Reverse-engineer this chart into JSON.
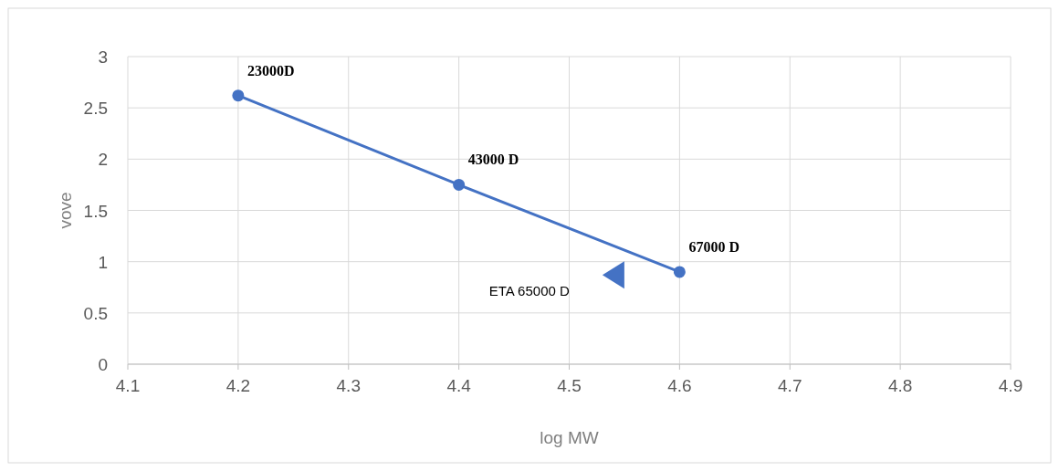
{
  "chart_data": {
    "type": "line",
    "xlabel": "log MW",
    "ylabel": "vove",
    "xlim": [
      4.1,
      4.9
    ],
    "xticks": [
      4.1,
      4.2,
      4.3,
      4.4,
      4.5,
      4.6,
      4.7,
      4.8,
      4.9
    ],
    "ylim": [
      0,
      3
    ],
    "yticks": [
      0,
      0.5,
      1,
      1.5,
      2,
      2.5,
      3
    ],
    "grid": true,
    "series": [
      {
        "color": "#4472c4",
        "marker": "circle",
        "x": [
          4.2,
          4.4,
          4.6
        ],
        "values": [
          2.62,
          1.75,
          0.9
        ]
      },
      {
        "type": "scatter",
        "color": "#4472c4",
        "marker": "triangle",
        "x": [
          4.54
        ],
        "values": [
          0.87
        ]
      }
    ],
    "annotations": [
      {
        "text": "23000D",
        "x": 4.2,
        "y": 2.62
      },
      {
        "text": "43000 D",
        "x": 4.4,
        "y": 1.75
      },
      {
        "text": "67000 D",
        "x": 4.6,
        "y": 0.9
      },
      "ETA 65000 D"
    ]
  }
}
